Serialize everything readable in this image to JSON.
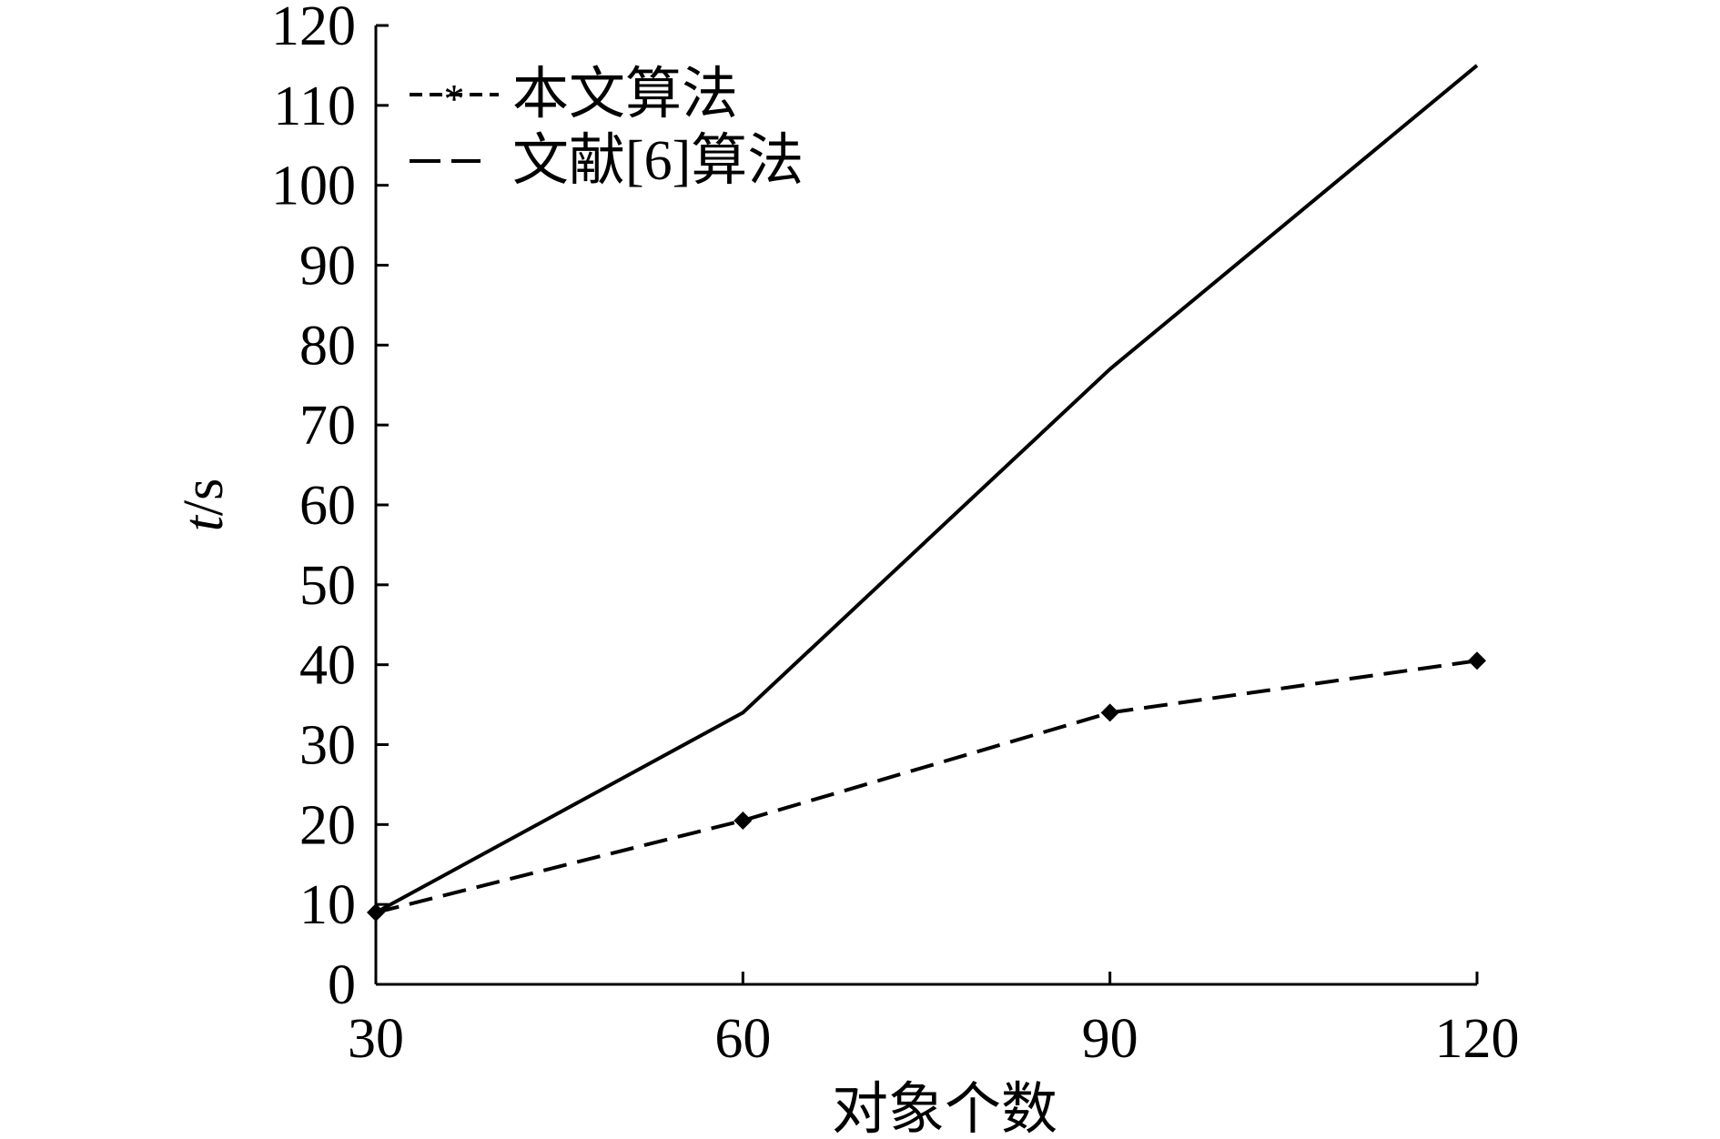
{
  "chart_data": {
    "type": "line",
    "xlabel": "对象个数",
    "ylabel_italic": "t",
    "ylabel_unit": "/s",
    "x": [
      30,
      60,
      90,
      120
    ],
    "xlim": [
      30,
      120
    ],
    "ylim": [
      0,
      120
    ],
    "xticks": [
      "30",
      "60",
      "90",
      "120"
    ],
    "yticks": [
      "0",
      "10",
      "20",
      "30",
      "40",
      "50",
      "60",
      "70",
      "80",
      "90",
      "100",
      "110",
      "120"
    ],
    "grid": false,
    "legend_position": "top-left",
    "series": [
      {
        "name": "本文算法",
        "values": [
          9,
          20.5,
          34,
          40.5
        ],
        "style": "dashed-star",
        "color": "#000000"
      },
      {
        "name": "文献[6]算法",
        "values": [
          9,
          34,
          77,
          115
        ],
        "style": "solid",
        "color": "#000000"
      }
    ]
  }
}
